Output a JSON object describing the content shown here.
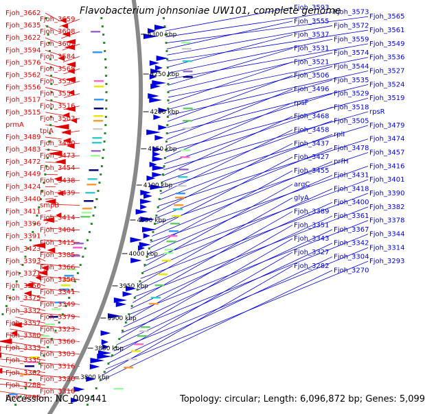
{
  "title": "Flavobacterium johnsoniae UW101, complete genome",
  "accession": "Accession: NC_009441",
  "topology": "Topology: circular; Length: 6,096,872 bp; Genes: 5,099",
  "kbp_ticks": [
    "4300 kbp",
    "4250 kbp",
    "4200 kbp",
    "4150 kbp",
    "4100 kbp",
    "4050 kbp",
    "4000 kbp",
    "3950 kbp",
    "3900 kbp",
    "3850 kbp",
    "3800 kbp"
  ],
  "colors": {
    "forward": "#0000dd",
    "reverse": "#e00000",
    "backbone": "#888888",
    "marker": "#2a8a2a"
  },
  "left_labels": [
    "Fjoh_3662",
    "Fjoh_3659",
    "Fjoh_3635",
    "Fjoh_3608",
    "Fjoh_3622",
    "Fjoh_3602",
    "Fjoh_3594",
    "Fjoh_3584",
    "Fjoh_3576",
    "Fjoh_3568",
    "Fjoh_3562",
    "Fjoh_3554",
    "Fjoh_3556",
    "Fjoh_3553",
    "Fjoh_3517",
    "Fjoh_3516",
    "Fjoh_3515",
    "Fjoh_3503",
    "prmA",
    "tpiA",
    "Fjoh_3489",
    "Fjoh_3490",
    "Fjoh_3483",
    "Fjoh_3473",
    "Fjoh_3472",
    "Fjoh_3454",
    "Fjoh_3449",
    "Fjoh_3438",
    "Fjoh_3424",
    "Fjoh_3439",
    "Fjoh_3440",
    "smpB",
    "Fjoh_3411",
    "Fjoh_3414",
    "Fjoh_3396",
    "Fjoh_3404",
    "Fjoh_3391",
    "Fjoh_3415",
    "Fjoh_3423",
    "Fjoh_3385",
    "Fjoh_3393",
    "Fjoh_3366",
    "Fjoh_3371",
    "Fjoh_3350",
    "Fjoh_3356",
    "Fjoh_3341",
    "Fjoh_3375",
    "Fjoh_3349",
    "Fjoh_3332",
    "Fjoh_3379",
    "Fjoh_3357",
    "Fjoh_3323",
    "Fjoh_3380",
    "Fjoh_3360",
    "Fjoh_3333",
    "Fjoh_3303",
    "Fjoh_3335",
    "Fjoh_3316",
    "Fjoh_3362",
    "Fjoh_3330",
    "Fjoh_3288",
    "Fjoh_3310",
    "Fjoh_3296"
  ],
  "right_labels": [
    "Fjoh_3593",
    "Fjoh_3573",
    "Fjoh_3565",
    "Fjoh_3555",
    "Fjoh_3572",
    "Fjoh_3561",
    "Fjoh_3537",
    "Fjoh_3559",
    "Fjoh_3549",
    "Fjoh_3531",
    "Fjoh_3574",
    "Fjoh_3536",
    "Fjoh_3521",
    "Fjoh_3544",
    "Fjoh_3527",
    "Fjoh_3506",
    "Fjoh_3535",
    "Fjoh_3524",
    "Fjoh_3496",
    "Fjoh_3529",
    "Fjoh_3519",
    "rpsF",
    "Fjoh_3518",
    "rpsR",
    "Fjoh_3468",
    "Fjoh_3505",
    "Fjoh_3479",
    "Fjoh_3458",
    "rplI",
    "Fjoh_3474",
    "Fjoh_3437",
    "Fjoh_3478",
    "Fjoh_3457",
    "Fjoh_3427",
    "prfH",
    "Fjoh_3416",
    "Fjoh_3455",
    "Fjoh_3431",
    "Fjoh_3401",
    "argC",
    "Fjoh_3418",
    "Fjoh_3390",
    "glyA",
    "Fjoh_3400",
    "Fjoh_3382",
    "Fjoh_3389",
    "Fjoh_3361",
    "Fjoh_3378",
    "Fjoh_3351",
    "Fjoh_3367",
    "Fjoh_3344",
    "Fjoh_3343",
    "Fjoh_3342",
    "Fjoh_3314",
    "Fjoh_3327",
    "Fjoh_3304",
    "Fjoh_3293",
    "Fjoh_3282",
    "Fjoh_3270"
  ]
}
